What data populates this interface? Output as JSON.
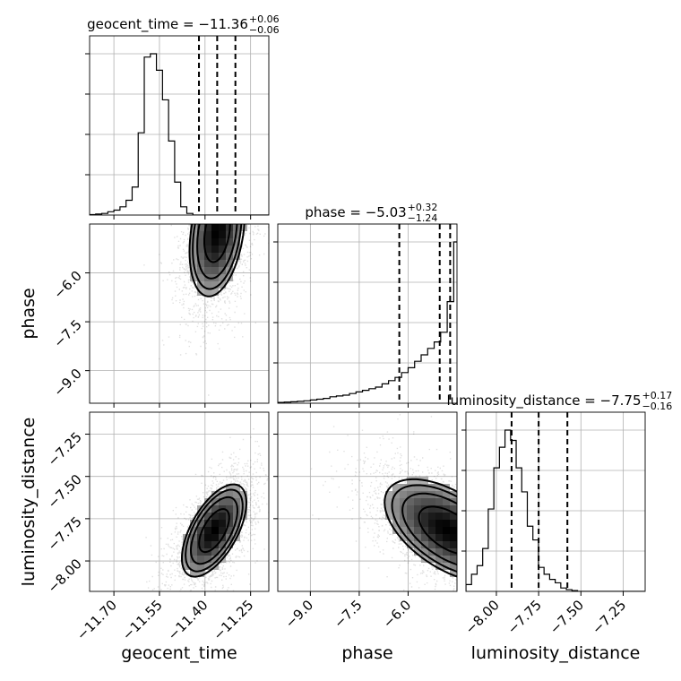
{
  "chart_data": {
    "type": "corner",
    "parameters": [
      {
        "key": "geocent_time",
        "axis_label": "geocent_time",
        "title_main": "geocent_time = −11.36",
        "title_sup": "+0.06",
        "title_sub": "−0.06",
        "median": -11.36,
        "q_low": -11.42,
        "q_high": -11.3,
        "range": [
          -11.78,
          -11.19
        ],
        "ticks": [
          -11.7,
          -11.55,
          -11.4,
          -11.25
        ],
        "tick_labels": [
          "−11.70",
          "−11.55",
          "−11.40",
          "−11.25"
        ],
        "hist": {
          "bin_edges_start": -11.78,
          "bin_width": 0.02,
          "counts": [
            0.3,
            0.6,
            1,
            2,
            3,
            5,
            9,
            17,
            50,
            96,
            98,
            88,
            70,
            45,
            20,
            5,
            1,
            0,
            0,
            0,
            0,
            0,
            0,
            0,
            0,
            0,
            0,
            0,
            0,
            0
          ]
        }
      },
      {
        "key": "phase",
        "axis_label": "phase",
        "title_main": "phase = −5.03",
        "title_sup": "+0.32",
        "title_sub": "−1.24",
        "median": -5.03,
        "q_low": -6.27,
        "q_high": -4.71,
        "range": [
          -10.0,
          -4.5
        ],
        "ticks": [
          -9.0,
          -7.5,
          -6.0
        ],
        "tick_labels": [
          "−9.0",
          "−7.5",
          "−6.0"
        ],
        "hist": {
          "bin_edges_start": -10.0,
          "bin_width": 0.2,
          "counts": [
            0.5,
            0.7,
            0.9,
            1.2,
            1.5,
            2,
            2.5,
            3,
            4,
            4.5,
            5,
            6,
            7,
            8,
            9,
            10,
            12,
            14,
            16,
            19,
            22,
            26,
            30,
            34,
            38,
            44,
            63,
            100
          ]
        }
      },
      {
        "key": "luminosity_distance",
        "axis_label": "luminosity_distance",
        "title_main": "luminosity_distance = −7.75",
        "title_sup": "+0.17",
        "title_sub": "−0.16",
        "median": -7.75,
        "q_low": -7.91,
        "q_high": -7.58,
        "range": [
          -8.18,
          -7.12
        ],
        "ticks": [
          -8.0,
          -7.75,
          -7.5,
          -7.25
        ],
        "tick_labels": [
          "−8.00",
          "−7.75",
          "−7.50",
          "−7.25"
        ],
        "hist": {
          "bin_edges_start": -8.18,
          "bin_width": 0.033,
          "counts": [
            4,
            10,
            15,
            25,
            48,
            72,
            84,
            94,
            88,
            72,
            58,
            38,
            30,
            14,
            10,
            7,
            5,
            2,
            1,
            0.5,
            0,
            0,
            0,
            0,
            0,
            0,
            0,
            0,
            0,
            0,
            0,
            0
          ]
        }
      }
    ],
    "pairs": [
      {
        "x": "geocent_time",
        "y": "phase",
        "center": [
          -11.36,
          -4.75
        ],
        "spread": [
          0.06,
          1.3
        ],
        "rho": 0.3
      },
      {
        "x": "geocent_time",
        "y": "luminosity_distance",
        "center": [
          -11.37,
          -7.82
        ],
        "spread": [
          0.07,
          0.18
        ],
        "rho": 0.6
      },
      {
        "x": "phase",
        "y": "luminosity_distance",
        "center": [
          -4.75,
          -7.82
        ],
        "spread": [
          1.3,
          0.2
        ],
        "rho": -0.55
      }
    ],
    "show_grid": true,
    "quantiles": [
      0.16,
      0.5,
      0.84
    ]
  }
}
